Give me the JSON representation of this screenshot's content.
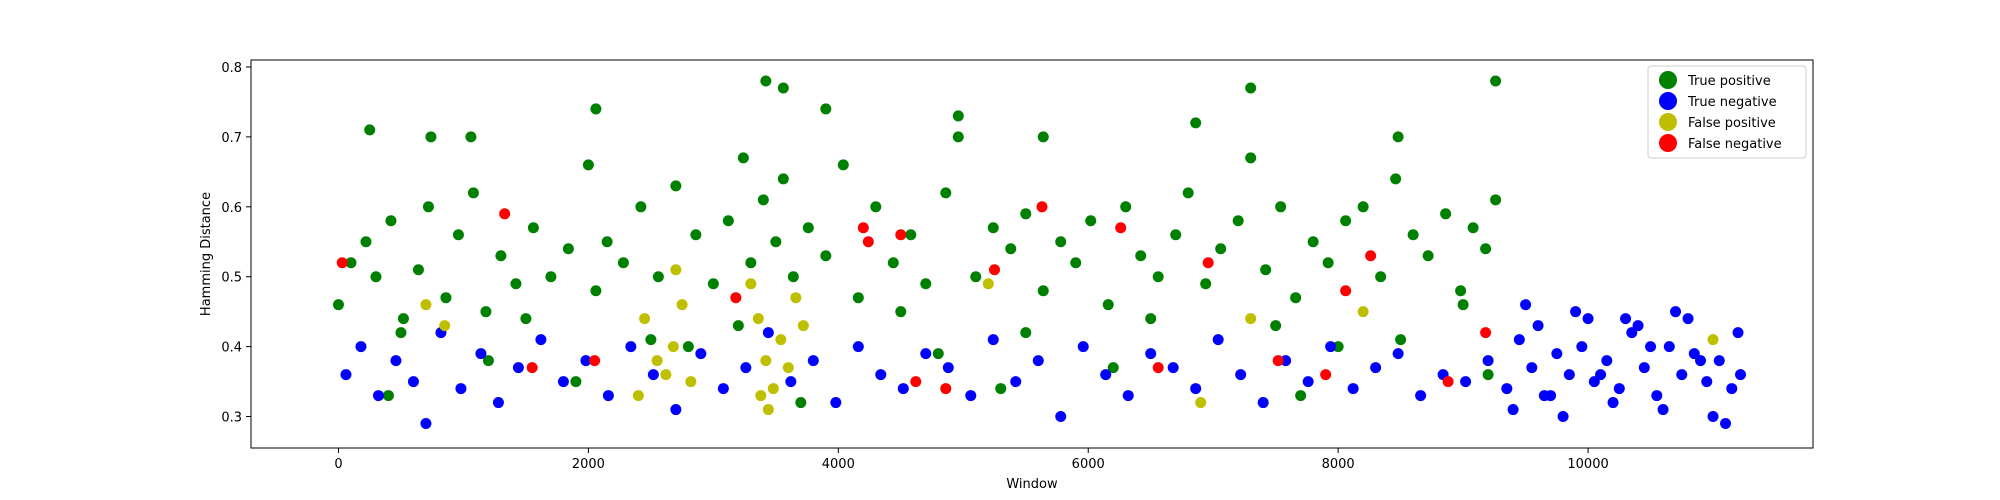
{
  "chart_data": {
    "type": "scatter",
    "title": "",
    "xlabel": "Window",
    "ylabel": "Hamming Distance",
    "xlim": [
      -700,
      11800
    ],
    "ylim": [
      0.255,
      0.81
    ],
    "x_ticks": [
      0,
      2000,
      4000,
      6000,
      8000,
      10000
    ],
    "y_ticks": [
      0.3,
      0.4,
      0.5,
      0.6,
      0.7,
      0.8
    ],
    "x_tick_labels": [
      "0",
      "2000",
      "4000",
      "6000",
      "8000",
      "10000"
    ],
    "y_tick_labels": [
      "0.3",
      "0.4",
      "0.5",
      "0.6",
      "0.7",
      "0.8"
    ],
    "grid": false,
    "legend_position": "top-right",
    "series": [
      {
        "name": "True positive",
        "color": "#008000",
        "x": [
          0,
          100,
          220,
          300,
          420,
          520,
          640,
          720,
          860,
          960,
          1080,
          1180,
          1300,
          1420,
          1560,
          1700,
          1840,
          2000,
          2060,
          2150,
          2280,
          2420,
          2560,
          2700,
          2860,
          3000,
          3120,
          3240,
          3300,
          3400,
          3500,
          3560,
          3640,
          3760,
          3900,
          4040,
          4160,
          4300,
          4440,
          4580,
          4700,
          4860,
          4960,
          5100,
          5240,
          5380,
          5500,
          5640,
          5780,
          5900,
          6020,
          6160,
          6300,
          6420,
          6560,
          6700,
          6800,
          6940,
          7060,
          7200,
          7300,
          7420,
          7540,
          7660,
          7800,
          7920,
          8060,
          8200,
          8340,
          8460,
          8600,
          8720,
          8860,
          8980,
          9080,
          9180,
          9260,
          250,
          1060,
          3420,
          3560,
          4960,
          7300,
          9260,
          740,
          2060,
          3900,
          5640,
          6860,
          8480,
          500,
          1500,
          2500,
          3200,
          4500,
          5500,
          6500,
          7500,
          8500,
          9000,
          1200,
          2800,
          4800,
          6200,
          8000,
          400,
          1900,
          3700,
          5300,
          7700,
          9200
        ],
        "y": [
          0.46,
          0.52,
          0.55,
          0.5,
          0.58,
          0.44,
          0.51,
          0.6,
          0.47,
          0.56,
          0.62,
          0.45,
          0.53,
          0.49,
          0.57,
          0.5,
          0.54,
          0.66,
          0.48,
          0.55,
          0.52,
          0.6,
          0.5,
          0.63,
          0.56,
          0.49,
          0.58,
          0.67,
          0.52,
          0.61,
          0.55,
          0.64,
          0.5,
          0.57,
          0.53,
          0.66,
          0.47,
          0.6,
          0.52,
          0.56,
          0.49,
          0.62,
          0.7,
          0.5,
          0.57,
          0.54,
          0.59,
          0.48,
          0.55,
          0.52,
          0.58,
          0.46,
          0.6,
          0.53,
          0.5,
          0.56,
          0.62,
          0.49,
          0.54,
          0.58,
          0.67,
          0.51,
          0.6,
          0.47,
          0.55,
          0.52,
          0.58,
          0.6,
          0.5,
          0.64,
          0.56,
          0.53,
          0.59,
          0.48,
          0.57,
          0.54,
          0.61,
          0.71,
          0.7,
          0.78,
          0.77,
          0.73,
          0.77,
          0.78,
          0.7,
          0.74,
          0.74,
          0.7,
          0.72,
          0.7,
          0.42,
          0.44,
          0.41,
          0.43,
          0.45,
          0.42,
          0.44,
          0.43,
          0.41,
          0.46,
          0.38,
          0.4,
          0.39,
          0.37,
          0.4,
          0.33,
          0.35,
          0.32,
          0.34,
          0.33,
          0.36
        ]
      },
      {
        "name": "True negative",
        "color": "#0000ff",
        "x": [
          60,
          180,
          320,
          460,
          600,
          700,
          820,
          980,
          1140,
          1280,
          1440,
          1620,
          1800,
          1980,
          2160,
          2340,
          2520,
          2700,
          2900,
          3080,
          3260,
          3440,
          3620,
          3800,
          3980,
          4160,
          4340,
          4520,
          4700,
          4880,
          5060,
          5240,
          5420,
          5600,
          5780,
          5960,
          6140,
          6320,
          6500,
          6680,
          6860,
          7040,
          7220,
          7400,
          7580,
          7760,
          7940,
          8120,
          8300,
          8480,
          8660,
          8840,
          9020,
          9200,
          9350,
          9450,
          9550,
          9650,
          9750,
          9850,
          9950,
          10050,
          10150,
          10250,
          10350,
          10450,
          10550,
          10650,
          10750,
          10850,
          10950,
          11050,
          11150,
          11220,
          9400,
          9600,
          9800,
          10000,
          10200,
          10400,
          10600,
          10800,
          11000,
          11200,
          9500,
          9900,
          10300,
          10700,
          11100,
          9700,
          10100,
          10500,
          10900
        ],
        "y": [
          0.36,
          0.4,
          0.33,
          0.38,
          0.35,
          0.29,
          0.42,
          0.34,
          0.39,
          0.32,
          0.37,
          0.41,
          0.35,
          0.38,
          0.33,
          0.4,
          0.36,
          0.31,
          0.39,
          0.34,
          0.37,
          0.42,
          0.35,
          0.38,
          0.32,
          0.4,
          0.36,
          0.34,
          0.39,
          0.37,
          0.33,
          0.41,
          0.35,
          0.38,
          0.3,
          0.4,
          0.36,
          0.33,
          0.39,
          0.37,
          0.34,
          0.41,
          0.36,
          0.32,
          0.38,
          0.35,
          0.4,
          0.34,
          0.37,
          0.39,
          0.33,
          0.36,
          0.35,
          0.38,
          0.34,
          0.41,
          0.37,
          0.33,
          0.39,
          0.36,
          0.4,
          0.35,
          0.38,
          0.34,
          0.42,
          0.37,
          0.33,
          0.4,
          0.36,
          0.39,
          0.35,
          0.38,
          0.34,
          0.36,
          0.31,
          0.43,
          0.3,
          0.44,
          0.32,
          0.43,
          0.31,
          0.44,
          0.3,
          0.42,
          0.46,
          0.45,
          0.44,
          0.45,
          0.29,
          0.33,
          0.36,
          0.4,
          0.38
        ]
      },
      {
        "name": "False positive",
        "color": "#bfbf00",
        "x": [
          700,
          850,
          2400,
          2450,
          2550,
          2620,
          2680,
          2750,
          2820,
          3300,
          3360,
          3420,
          3480,
          3540,
          3600,
          3660,
          3720,
          3380,
          3440,
          2700,
          5200,
          6900,
          7300,
          8200,
          11000
        ],
        "y": [
          0.46,
          0.43,
          0.33,
          0.44,
          0.38,
          0.36,
          0.4,
          0.46,
          0.35,
          0.49,
          0.44,
          0.38,
          0.34,
          0.41,
          0.37,
          0.47,
          0.43,
          0.33,
          0.31,
          0.51,
          0.49,
          0.32,
          0.44,
          0.45,
          0.41
        ]
      },
      {
        "name": "False negative",
        "color": "#ff0000",
        "x": [
          30,
          1330,
          1550,
          2050,
          3180,
          4200,
          4240,
          4500,
          4620,
          4860,
          5250,
          5630,
          6260,
          6560,
          6960,
          7520,
          7900,
          8060,
          8260,
          8880,
          9180
        ],
        "y": [
          0.52,
          0.59,
          0.37,
          0.38,
          0.47,
          0.57,
          0.55,
          0.56,
          0.35,
          0.34,
          0.51,
          0.6,
          0.57,
          0.37,
          0.52,
          0.38,
          0.36,
          0.48,
          0.53,
          0.35,
          0.42
        ]
      }
    ]
  }
}
